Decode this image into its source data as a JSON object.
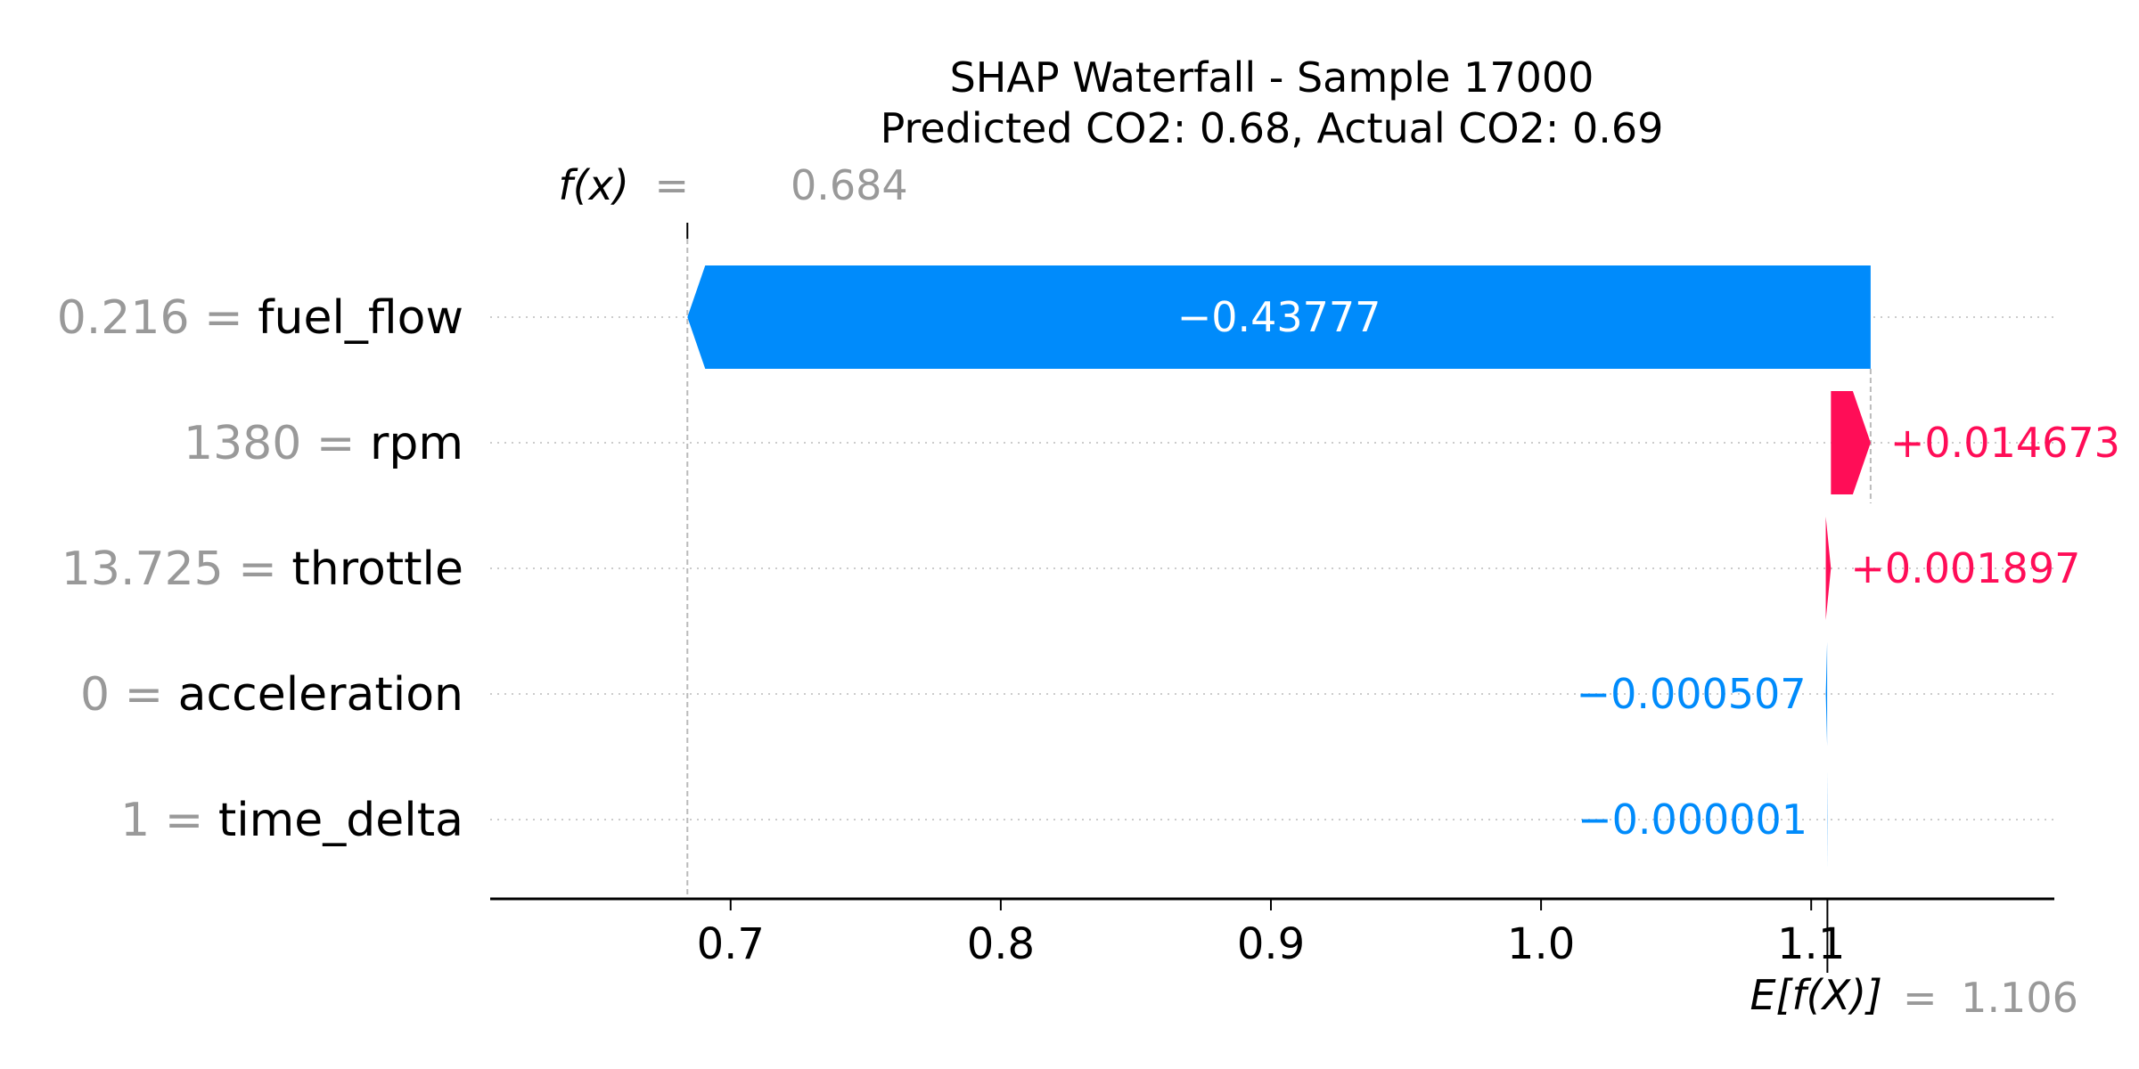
{
  "chart_data": {
    "type": "waterfall",
    "title": "SHAP Waterfall - Sample 17000",
    "subtitle": "Predicted CO2: 0.68, Actual CO2: 0.69",
    "fx_label": "f(x)",
    "fx_eq": "=",
    "fx_value": 0.684,
    "fx_value_text": "0.684",
    "base_label": "E[f(X)]",
    "base_eq": "=",
    "base_value": 1.106,
    "base_value_text": "1.106",
    "xlim": [
      0.611,
      1.19
    ],
    "xticks": [
      0.7,
      0.8,
      0.9,
      1.0,
      1.1
    ],
    "xtick_labels": [
      "0.7",
      "0.8",
      "0.9",
      "1.0",
      "1.1"
    ],
    "features": [
      {
        "feature": "fuel_flow",
        "value_text": "0.216",
        "eq": "=",
        "shap": -0.43777,
        "label": "−0.43777",
        "start": 1.122,
        "end": 0.684
      },
      {
        "feature": "rpm",
        "value_text": "1380",
        "eq": "=",
        "shap": 0.014673,
        "label": "+0.014673",
        "start": 1.1073,
        "end": 1.122
      },
      {
        "feature": "throttle",
        "value_text": "13.725",
        "eq": "=",
        "shap": 0.001897,
        "label": "+0.001897",
        "start": 1.1054,
        "end": 1.1073
      },
      {
        "feature": "acceleration",
        "value_text": "0",
        "eq": "=",
        "shap": -0.000507,
        "label": "−0.000507",
        "start": 1.1059,
        "end": 1.1054
      },
      {
        "feature": "time_delta",
        "value_text": "1",
        "eq": "=",
        "shap": -1e-06,
        "label": "−0.000001",
        "start": 1.106,
        "end": 1.1059
      }
    ],
    "colors": {
      "positive": "#ff0d57",
      "negative": "#008bfb",
      "muted": "#999999",
      "text": "#000000"
    }
  }
}
